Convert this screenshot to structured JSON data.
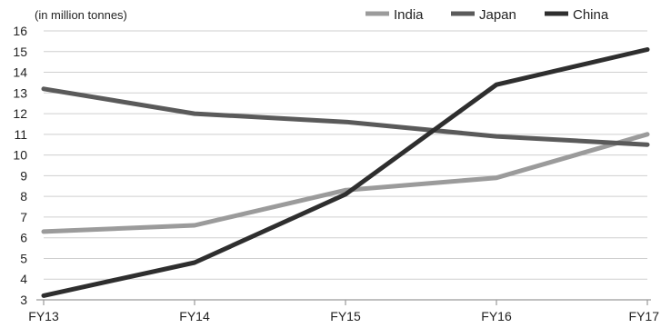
{
  "chart_data": {
    "type": "line",
    "title": "",
    "unit_note": "(in million tonnes)",
    "xlabel": "",
    "ylabel": "",
    "categories": [
      "FY13",
      "FY14",
      "FY15",
      "FY16",
      "FY17"
    ],
    "y_ticks": [
      3,
      4,
      5,
      6,
      7,
      8,
      9,
      10,
      11,
      12,
      13,
      14,
      15,
      16
    ],
    "ylim": [
      3,
      16
    ],
    "grid": true,
    "legend_position": "top-right",
    "series": [
      {
        "name": "India",
        "color": "#9b9b9b",
        "values": [
          6.3,
          6.6,
          8.3,
          8.9,
          11.0
        ]
      },
      {
        "name": "Japan",
        "color": "#5a5a5a",
        "values": [
          13.2,
          12.0,
          11.6,
          10.9,
          10.5
        ]
      },
      {
        "name": "China",
        "color": "#2e2e2e",
        "values": [
          3.2,
          4.8,
          8.1,
          13.4,
          15.1
        ]
      }
    ]
  }
}
